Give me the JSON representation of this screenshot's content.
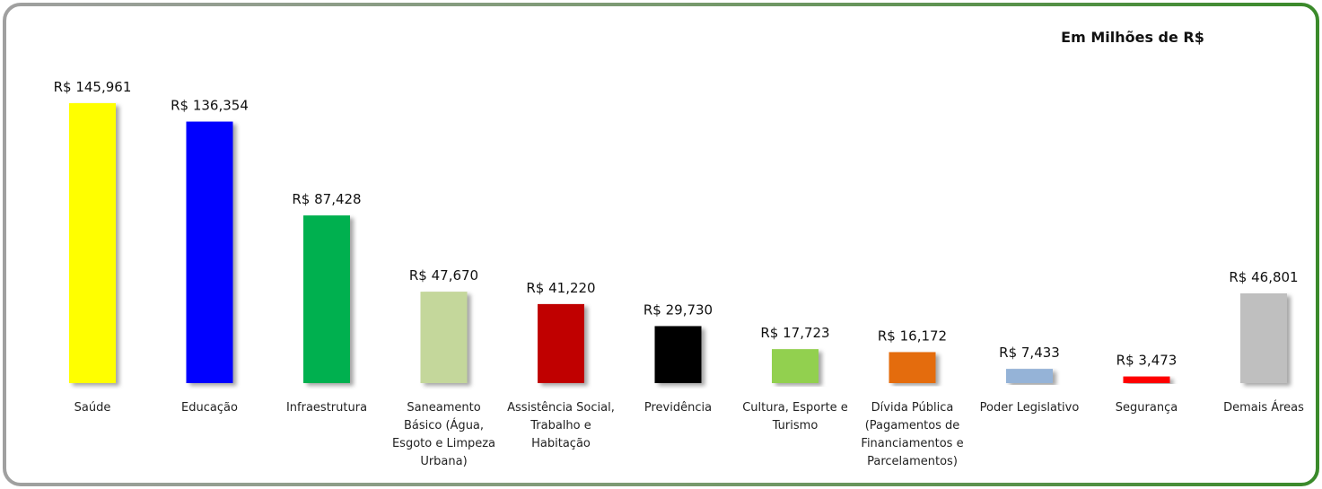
{
  "chart_data": {
    "type": "bar",
    "title": "Em Milhões de R$",
    "categories": [
      "Saúde",
      "Educação",
      "Infraestrutura",
      "Saneamento Básico (Água, Esgoto e Limpeza Urbana)",
      "Assistência Social, Trabalho e Habitação",
      "Previdência",
      "Cultura, Esporte e Turismo",
      "Dívida Pública (Pagamentos de Financiamentos e Parcelamentos)",
      "Poder Legislativo",
      "Segurança",
      "Demais Áreas"
    ],
    "values": [
      145.961,
      136.354,
      87.428,
      47.67,
      41.22,
      29.73,
      17.723,
      16.172,
      7.433,
      3.473,
      46.801
    ],
    "value_labels": [
      "R$ 145,961",
      "R$ 136,354",
      "R$ 87,428",
      "R$ 47,670",
      "R$ 41,220",
      "R$ 29,730",
      "R$ 17,723",
      "R$ 16,172",
      "R$ 7,433",
      "R$ 3,473",
      "R$ 46,801"
    ],
    "colors": [
      "#ffff00",
      "#0000ff",
      "#00b050",
      "#c4d79b",
      "#c00000",
      "#000000",
      "#92d050",
      "#e46c0a",
      "#95b3d7",
      "#ff0000",
      "#bfbfbf"
    ]
  }
}
